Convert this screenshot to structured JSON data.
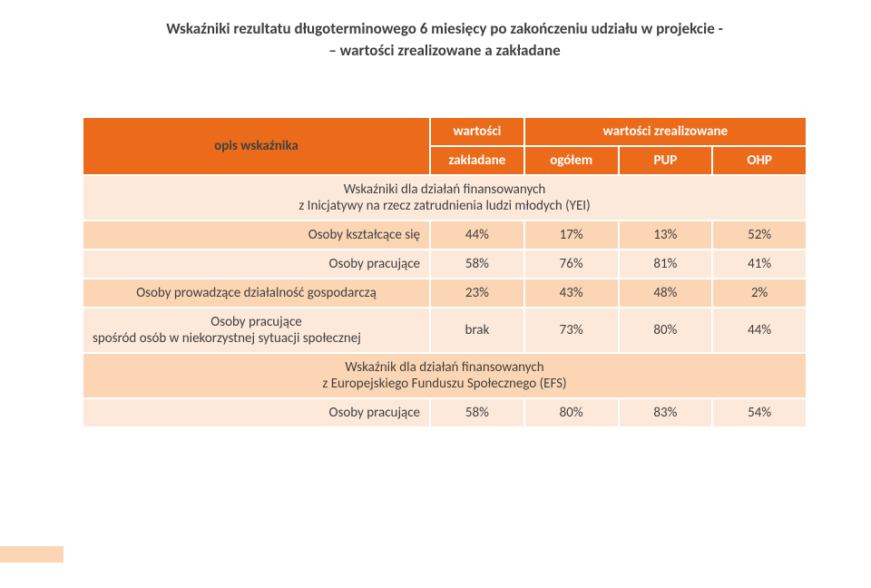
{
  "colors": {
    "header_bg": "#ec6b1a",
    "row_light": "#fde9d9",
    "row_band": "#fcd5b4",
    "text": "#404040",
    "border": "#ffffff",
    "footer_rect": "#fcd5b4"
  },
  "title": "Wskaźniki rezultatu długoterminowego 6 miesięcy po zakończeniu udziału w projekcie -\n– wartości zrealizowane a zakładane",
  "header": {
    "opis": "opis wskaźnika",
    "wartosci": "wartości",
    "zakladane": "zakładane",
    "zrealizowane": "wartości zrealizowane",
    "ogolem": "ogółem",
    "pup": "PUP",
    "ohp": "OHP"
  },
  "sections": [
    {
      "line1": "Wskaźniki dla działań finansowanych",
      "line2": "z Inicjatywy na rzecz zatrudnienia ludzi młodych (YEI)"
    },
    {
      "line1": "Wskaźnik dla działań finansowanych",
      "line2": "z Europejskiego Funduszu Społecznego (EFS)"
    }
  ],
  "rows": [
    {
      "label": "Osoby kształcące się",
      "v": [
        "44%",
        "17%",
        "13%",
        "52%"
      ]
    },
    {
      "label": "Osoby pracujące",
      "v": [
        "58%",
        "76%",
        "81%",
        "41%"
      ]
    },
    {
      "label": "Osoby prowadzące działalność gospodarczą",
      "v": [
        "23%",
        "43%",
        "48%",
        "2%"
      ]
    },
    {
      "label_l1": "Osoby  pracujące",
      "label_l2": "spośród osób w niekorzystnej sytuacji społecznej",
      "v": [
        "brak",
        "73%",
        "80%",
        "44%"
      ]
    },
    {
      "label": "Osoby pracujące",
      "v": [
        "58%",
        "80%",
        "83%",
        "54%"
      ]
    }
  ],
  "column_widths": [
    "48%",
    "13%",
    "13%",
    "13%",
    "13%"
  ]
}
